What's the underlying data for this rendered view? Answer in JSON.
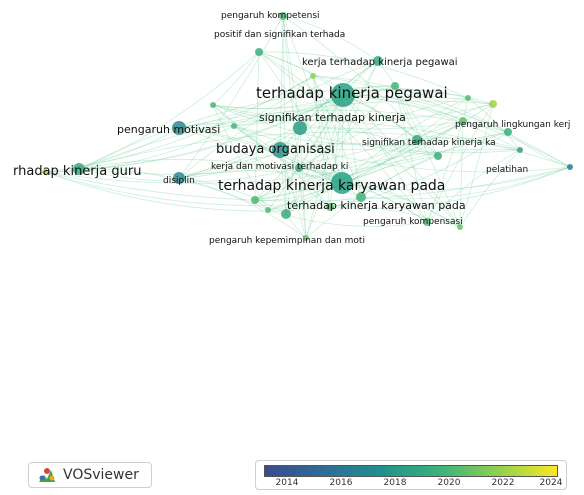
{
  "app": {
    "name": "VOSviewer"
  },
  "legend": {
    "years": [
      "2014",
      "2016",
      "2018",
      "2020",
      "2022",
      "2024"
    ]
  },
  "keywords": [
    {
      "id": "k1",
      "label": "pengaruh kompetensi"
    },
    {
      "id": "k2",
      "label": "positif dan signifikan terhada"
    },
    {
      "id": "k3",
      "label": "kerja terhadap kinerja pegawai"
    },
    {
      "id": "k4",
      "label": "terhadap kinerja pegawai"
    },
    {
      "id": "k5",
      "label": "signifikan terhadap kinerja"
    },
    {
      "id": "k6",
      "label": "pengaruh lingkungan kerj"
    },
    {
      "id": "k7",
      "label": "pengaruh motivasi"
    },
    {
      "id": "k8",
      "label": "signifikan terhadap kinerja ka"
    },
    {
      "id": "k9",
      "label": "budaya organisasi"
    },
    {
      "id": "k10",
      "label": "kerja dan motivasi terhadap ki"
    },
    {
      "id": "k11",
      "label": "pelatihan"
    },
    {
      "id": "k12",
      "label": "rhadap kinerja guru"
    },
    {
      "id": "k13",
      "label": "disiplin"
    },
    {
      "id": "k14",
      "label": "terhadap kinerja karyawan pada"
    },
    {
      "id": "k15",
      "label": "terhadap kinerja karyawan pada"
    },
    {
      "id": "k16",
      "label": "pengaruh kompensasi"
    },
    {
      "id": "k17",
      "label": "pengaruh kepemimpinan dan moti"
    }
  ]
}
